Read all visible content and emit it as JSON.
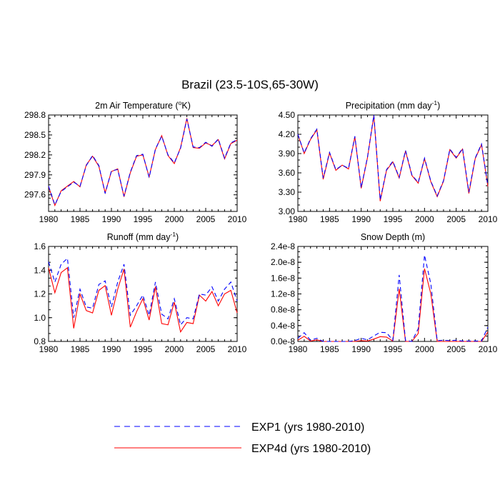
{
  "figure": {
    "title": "Brazil (23.5-10S,65-30W)"
  },
  "legend": [
    {
      "label": "EXP1 (yrs 1980-2010)",
      "color": "#0000ff",
      "style": "dashed"
    },
    {
      "label": "EXP4d (yrs 1980-2010)",
      "color": "#ff0000",
      "style": "solid"
    }
  ],
  "chart_data": [
    {
      "type": "line",
      "title": "2m Air Temperature (°K)",
      "title_main": "2m Air Temperature (",
      "title_sup": "o",
      "title_end": "K)",
      "xlim": [
        1980,
        2010
      ],
      "ylim": [
        297.35,
        298.8
      ],
      "xticks": [
        1980,
        1985,
        1990,
        1995,
        2000,
        2005,
        2010
      ],
      "xticklabels": [
        "1980",
        "1985",
        "1990",
        "1995",
        "2000",
        "2005",
        "2010"
      ],
      "yticks": [
        297.6,
        297.9,
        298.2,
        298.5,
        298.8
      ],
      "yticklabels": [
        "297.6",
        "297.9",
        "298.2",
        "298.5",
        "298.8"
      ],
      "x": [
        1980,
        1981,
        1982,
        1983,
        1984,
        1985,
        1986,
        1987,
        1988,
        1989,
        1990,
        1991,
        1992,
        1993,
        1994,
        1995,
        1996,
        1997,
        1998,
        1999,
        2000,
        2001,
        2002,
        2003,
        2004,
        2005,
        2006,
        2007,
        2008,
        2009,
        2010
      ],
      "series": [
        {
          "name": "EXP1",
          "values": [
            297.73,
            297.45,
            297.65,
            297.72,
            297.79,
            297.73,
            298.04,
            298.19,
            298.04,
            297.62,
            297.96,
            297.98,
            297.58,
            297.94,
            298.19,
            298.21,
            297.86,
            298.29,
            298.48,
            298.2,
            298.08,
            298.3,
            298.74,
            298.32,
            298.31,
            298.39,
            298.33,
            298.44,
            298.15,
            298.38,
            298.43
          ]
        },
        {
          "name": "EXP4d",
          "values": [
            297.72,
            297.44,
            297.66,
            297.73,
            297.8,
            297.72,
            298.05,
            298.18,
            298.03,
            297.63,
            297.95,
            297.99,
            297.57,
            297.93,
            298.18,
            298.2,
            297.87,
            298.28,
            298.49,
            298.19,
            298.07,
            298.31,
            298.75,
            298.31,
            298.3,
            298.38,
            298.34,
            298.43,
            298.14,
            298.37,
            298.42
          ]
        }
      ]
    },
    {
      "type": "line",
      "title": "Precipitation (mm day-1)",
      "title_main": "Precipitation (mm day",
      "title_sup": "-1",
      "title_end": ")",
      "xlim": [
        1980,
        2010
      ],
      "ylim": [
        3.0,
        4.5
      ],
      "xticks": [
        1980,
        1985,
        1990,
        1995,
        2000,
        2005,
        2010
      ],
      "xticklabels": [
        "1980",
        "1985",
        "1990",
        "1995",
        "2000",
        "2005",
        "2010"
      ],
      "yticks": [
        3.0,
        3.3,
        3.6,
        3.9,
        4.2,
        4.5
      ],
      "yticklabels": [
        "3.00",
        "3.30",
        "3.60",
        "3.90",
        "4.20",
        "4.50"
      ],
      "x": [
        1980,
        1981,
        1982,
        1983,
        1984,
        1985,
        1986,
        1987,
        1988,
        1989,
        1990,
        1991,
        1992,
        1993,
        1994,
        1995,
        1996,
        1997,
        1998,
        1999,
        2000,
        2001,
        2002,
        2003,
        2004,
        2005,
        2006,
        2007,
        2008,
        2009,
        2010
      ],
      "series": [
        {
          "name": "EXP1",
          "values": [
            4.2,
            3.91,
            4.13,
            4.28,
            3.52,
            3.92,
            3.65,
            3.72,
            3.67,
            4.17,
            3.37,
            3.85,
            4.5,
            3.18,
            3.65,
            3.78,
            3.53,
            3.95,
            3.57,
            3.45,
            3.83,
            3.47,
            3.24,
            3.48,
            3.97,
            3.84,
            3.98,
            3.3,
            3.83,
            4.05,
            3.4
          ]
        },
        {
          "name": "EXP4d",
          "values": [
            4.2,
            3.9,
            4.12,
            4.27,
            3.5,
            3.91,
            3.64,
            3.72,
            3.66,
            4.16,
            3.36,
            3.84,
            4.49,
            3.16,
            3.64,
            3.77,
            3.52,
            3.94,
            3.56,
            3.44,
            3.82,
            3.46,
            3.23,
            3.47,
            3.96,
            3.83,
            3.97,
            3.28,
            3.82,
            4.04,
            3.39
          ]
        }
      ]
    },
    {
      "type": "line",
      "title": "Runoff (mm day-1)",
      "title_main": "Runoff (mm day",
      "title_sup": "-1",
      "title_end": ")",
      "xlim": [
        1980,
        2010
      ],
      "ylim": [
        0.8,
        1.6
      ],
      "xticks": [
        1980,
        1985,
        1990,
        1995,
        2000,
        2005,
        2010
      ],
      "xticklabels": [
        "1980",
        "1985",
        "1990",
        "1995",
        "2000",
        "2005",
        "2010"
      ],
      "yticks": [
        0.8,
        1.0,
        1.2,
        1.4,
        1.6
      ],
      "yticklabels": [
        "0.8",
        "1.0",
        "1.2",
        "1.4",
        "1.6"
      ],
      "x": [
        1980,
        1981,
        1982,
        1983,
        1984,
        1985,
        1986,
        1987,
        1988,
        1989,
        1990,
        1991,
        1992,
        1993,
        1994,
        1995,
        1996,
        1997,
        1998,
        1999,
        2000,
        2001,
        2002,
        2003,
        2004,
        2005,
        2006,
        2007,
        2008,
        2009,
        2010
      ],
      "series": [
        {
          "name": "EXP1",
          "values": [
            1.47,
            1.3,
            1.45,
            1.5,
            1.0,
            1.24,
            1.09,
            1.08,
            1.28,
            1.31,
            1.09,
            1.3,
            1.45,
            1.02,
            1.1,
            1.19,
            1.02,
            1.3,
            1.03,
            0.99,
            1.16,
            0.94,
            1.0,
            0.99,
            1.2,
            1.19,
            1.26,
            1.14,
            1.24,
            1.3,
            1.14
          ]
        },
        {
          "name": "EXP4d",
          "values": [
            1.42,
            1.21,
            1.38,
            1.42,
            0.91,
            1.2,
            1.06,
            1.04,
            1.23,
            1.27,
            1.02,
            1.24,
            1.41,
            0.92,
            1.05,
            1.16,
            0.98,
            1.26,
            0.95,
            0.94,
            1.13,
            0.88,
            0.96,
            0.95,
            1.19,
            1.14,
            1.22,
            1.1,
            1.2,
            1.23,
            1.04
          ]
        }
      ]
    },
    {
      "type": "line",
      "title": "Snow Depth (m)",
      "title_main": "Snow Depth (m)",
      "title_sup": "",
      "title_end": "",
      "xlim": [
        1980,
        2010
      ],
      "ylim": [
        0,
        2.4e-08
      ],
      "xticks": [
        1980,
        1985,
        1990,
        1995,
        2000,
        2005,
        2010
      ],
      "xticklabels": [
        "1980",
        "1985",
        "1990",
        "1995",
        "2000",
        "2005",
        "2010"
      ],
      "yticks": [
        0,
        4e-09,
        8e-09,
        1.2e-08,
        1.6e-08,
        2e-08,
        2.4e-08
      ],
      "yticklabels": [
        "0.0e-8",
        "0.4e-8",
        "0.8e-8",
        "1.2e-8",
        "1.6e-8",
        "2.0e-8",
        "2.4e-8"
      ],
      "x": [
        1980,
        1981,
        1982,
        1983,
        1984,
        1985,
        1986,
        1987,
        1988,
        1989,
        1990,
        1991,
        1992,
        1993,
        1994,
        1995,
        1996,
        1997,
        1998,
        1999,
        2000,
        2001,
        2002,
        2003,
        2004,
        2005,
        2006,
        2007,
        2008,
        2009,
        2010
      ],
      "series": [
        {
          "name": "EXP1",
          "values": [
            8e-10,
            2.2e-09,
            3e-10,
            8e-10,
            0,
            0,
            0,
            0,
            0,
            2e-10,
            8e-10,
            4e-10,
            1.4e-09,
            2.3e-09,
            2.2e-09,
            3e-10,
            1.68e-08,
            2e-10,
            0,
            3.2e-09,
            2.18e-08,
            1.45e-08,
            2e-10,
            3e-10,
            2e-10,
            3e-10,
            1e-10,
            1e-10,
            1e-10,
            1e-10,
            3.6e-09
          ]
        },
        {
          "name": "EXP4d",
          "values": [
            3e-10,
            1.3e-09,
            1e-10,
            4e-10,
            0,
            0,
            0,
            0,
            0,
            0,
            2e-10,
            1e-10,
            6e-10,
            1.2e-09,
            1.1e-09,
            1e-10,
            1.33e-08,
            0,
            0,
            2e-09,
            1.84e-08,
            1.2e-08,
            0,
            0,
            0,
            0,
            0,
            0,
            0,
            0,
            2.4e-09
          ]
        }
      ]
    }
  ]
}
